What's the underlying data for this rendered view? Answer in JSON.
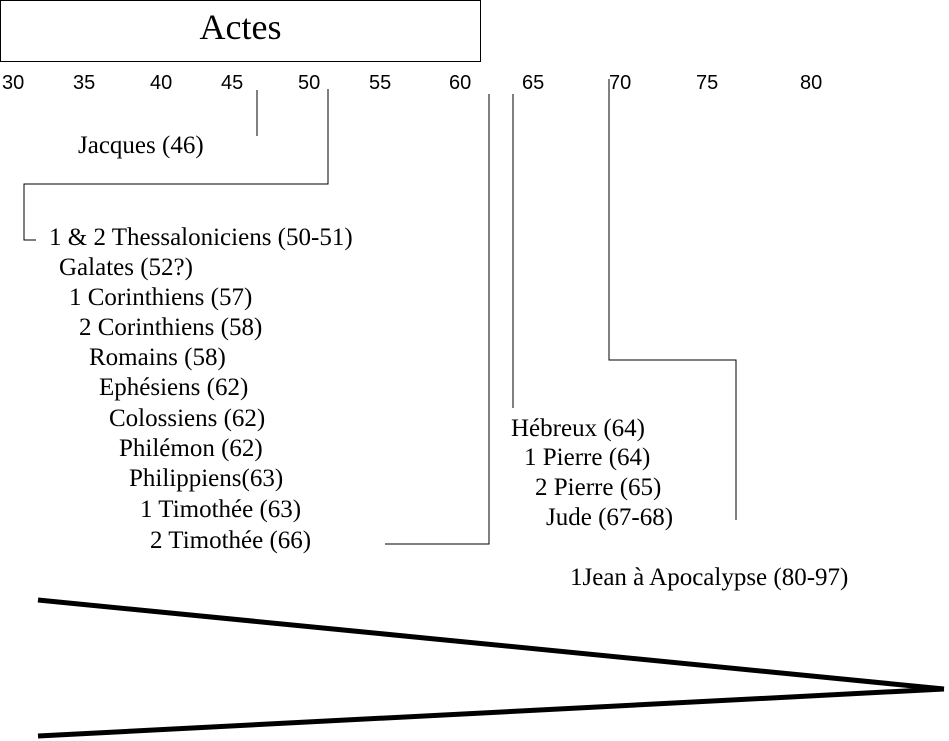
{
  "actes": {
    "label": "Actes"
  },
  "timeline": {
    "ticks": [
      "30",
      "35",
      "40",
      "45",
      "50",
      "55",
      "60",
      "65",
      "70",
      "75",
      "80"
    ]
  },
  "books": {
    "jacques": "Jacques (46)",
    "thessaloniciens": "1 & 2 Thessaloniciens (50-51)",
    "galates": "Galates (52?)",
    "corinthiens1": "1 Corinthiens (57)",
    "corinthiens2": "2 Corinthiens (58)",
    "romains": "Romains (58)",
    "ephesiens": "Ephésiens (62)",
    "colossiens": "Colossiens (62)",
    "philemon": "Philémon (62)",
    "philippiens": "Philippiens(63)",
    "timothee1": "1 Timothée (63)",
    "timothee2": "2 Timothée (66)",
    "hebreux": "Hébreux (64)",
    "pierre1": "1 Pierre (64)",
    "pierre2": "2 Pierre (65)",
    "jude": "Jude (67-68)",
    "jean_apocalypse": "1Jean à Apocalypse (80-97)"
  },
  "colors": {
    "ink": "#000000",
    "background": "#ffffff"
  }
}
